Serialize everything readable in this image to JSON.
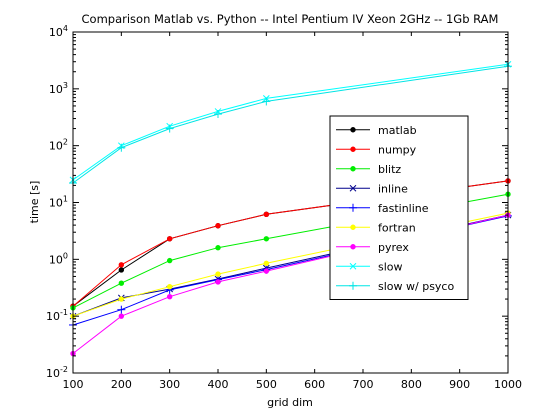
{
  "chart_data": {
    "type": "line",
    "title": "Comparison Matlab vs. Python -- Intel Pentium IV Xeon 2GHz -- 1Gb RAM",
    "xlabel": "grid dim",
    "ylabel": "time [s]",
    "xlim": [
      100,
      1000
    ],
    "ylim": [
      0.01,
      10000
    ],
    "yscale": "log",
    "grid": false,
    "legend_position": "center-right",
    "x": [
      100,
      200,
      300,
      400,
      500,
      1000
    ],
    "x_ticks": [
      "100",
      "200",
      "300",
      "400",
      "500",
      "600",
      "700",
      "800",
      "900",
      "1000"
    ],
    "y_ticks": [
      {
        "base": "10",
        "exp": "-2"
      },
      {
        "base": "10",
        "exp": "-1"
      },
      {
        "base": "10",
        "exp": "0"
      },
      {
        "base": "10",
        "exp": "1"
      },
      {
        "base": "10",
        "exp": "2"
      },
      {
        "base": "10",
        "exp": "3"
      },
      {
        "base": "10",
        "exp": "4"
      }
    ],
    "series": [
      {
        "name": "matlab",
        "color": "#000000",
        "marker": "dot",
        "values": [
          0.15,
          0.65,
          2.3,
          3.9,
          6.2,
          24
        ]
      },
      {
        "name": "numpy",
        "color": "#ff0000",
        "marker": "dot",
        "values": [
          0.15,
          0.8,
          2.3,
          3.9,
          6.2,
          24
        ]
      },
      {
        "name": "blitz",
        "color": "#00ee00",
        "marker": "dot",
        "values": [
          0.14,
          0.38,
          0.95,
          1.6,
          2.3,
          14
        ]
      },
      {
        "name": "inline",
        "color": "#00008b",
        "marker": "x",
        "values": [
          0.1,
          0.21,
          0.3,
          0.45,
          0.7,
          6
        ]
      },
      {
        "name": "fastinline",
        "color": "#0000ff",
        "marker": "plus",
        "values": [
          0.07,
          0.13,
          0.29,
          0.44,
          0.66,
          5.8
        ]
      },
      {
        "name": "fortran",
        "color": "#ffff00",
        "marker": "dot",
        "values": [
          0.1,
          0.2,
          0.33,
          0.55,
          0.85,
          6.5
        ]
      },
      {
        "name": "pyrex",
        "color": "#ff00ff",
        "marker": "dot",
        "values": [
          0.022,
          0.1,
          0.22,
          0.4,
          0.62,
          6
        ]
      },
      {
        "name": "slow",
        "color": "#00ffff",
        "marker": "x",
        "values": [
          25,
          100,
          220,
          400,
          680,
          2700
        ]
      },
      {
        "name": "slow w/ psyco",
        "color": "#00e5e5",
        "marker": "plus",
        "values": [
          22,
          92,
          200,
          360,
          600,
          2500
        ]
      }
    ]
  }
}
